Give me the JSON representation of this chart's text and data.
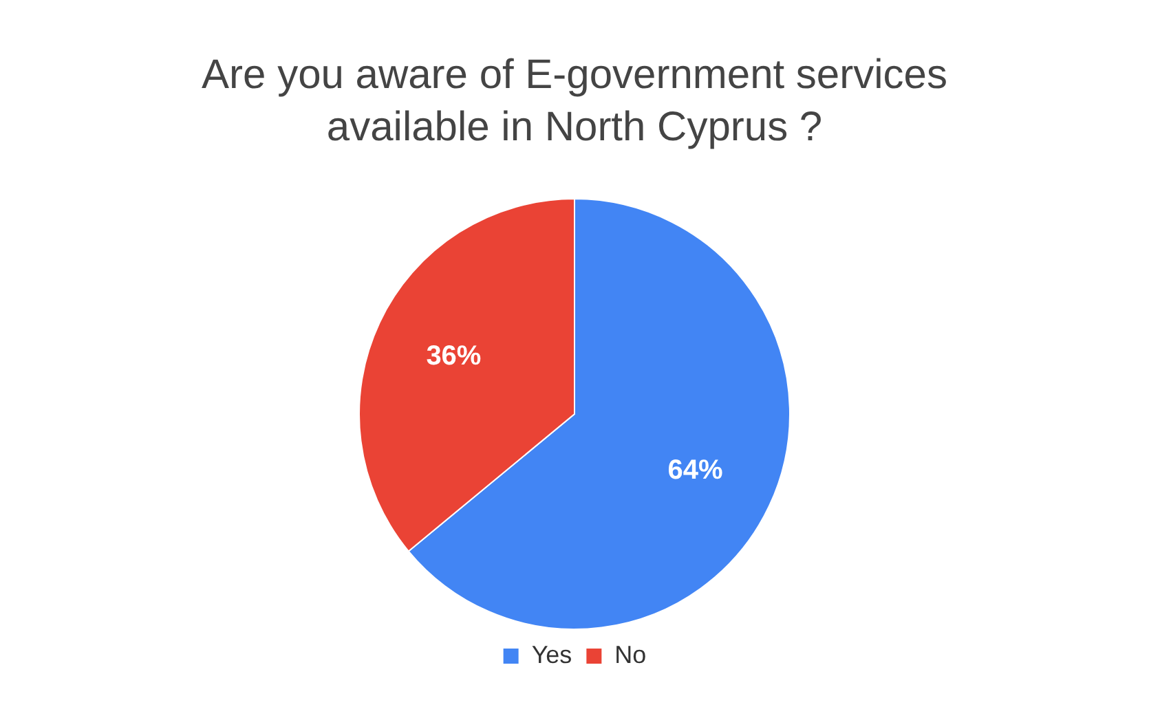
{
  "chart_data": {
    "type": "pie",
    "title": "Are you aware of E-government services available in North Cyprus ?",
    "categories": [
      "Yes",
      "No"
    ],
    "values": [
      64,
      36
    ],
    "colors": [
      "#4285f4",
      "#ea4335"
    ],
    "value_labels": [
      "64%",
      "36%"
    ],
    "legend": "bottom"
  }
}
